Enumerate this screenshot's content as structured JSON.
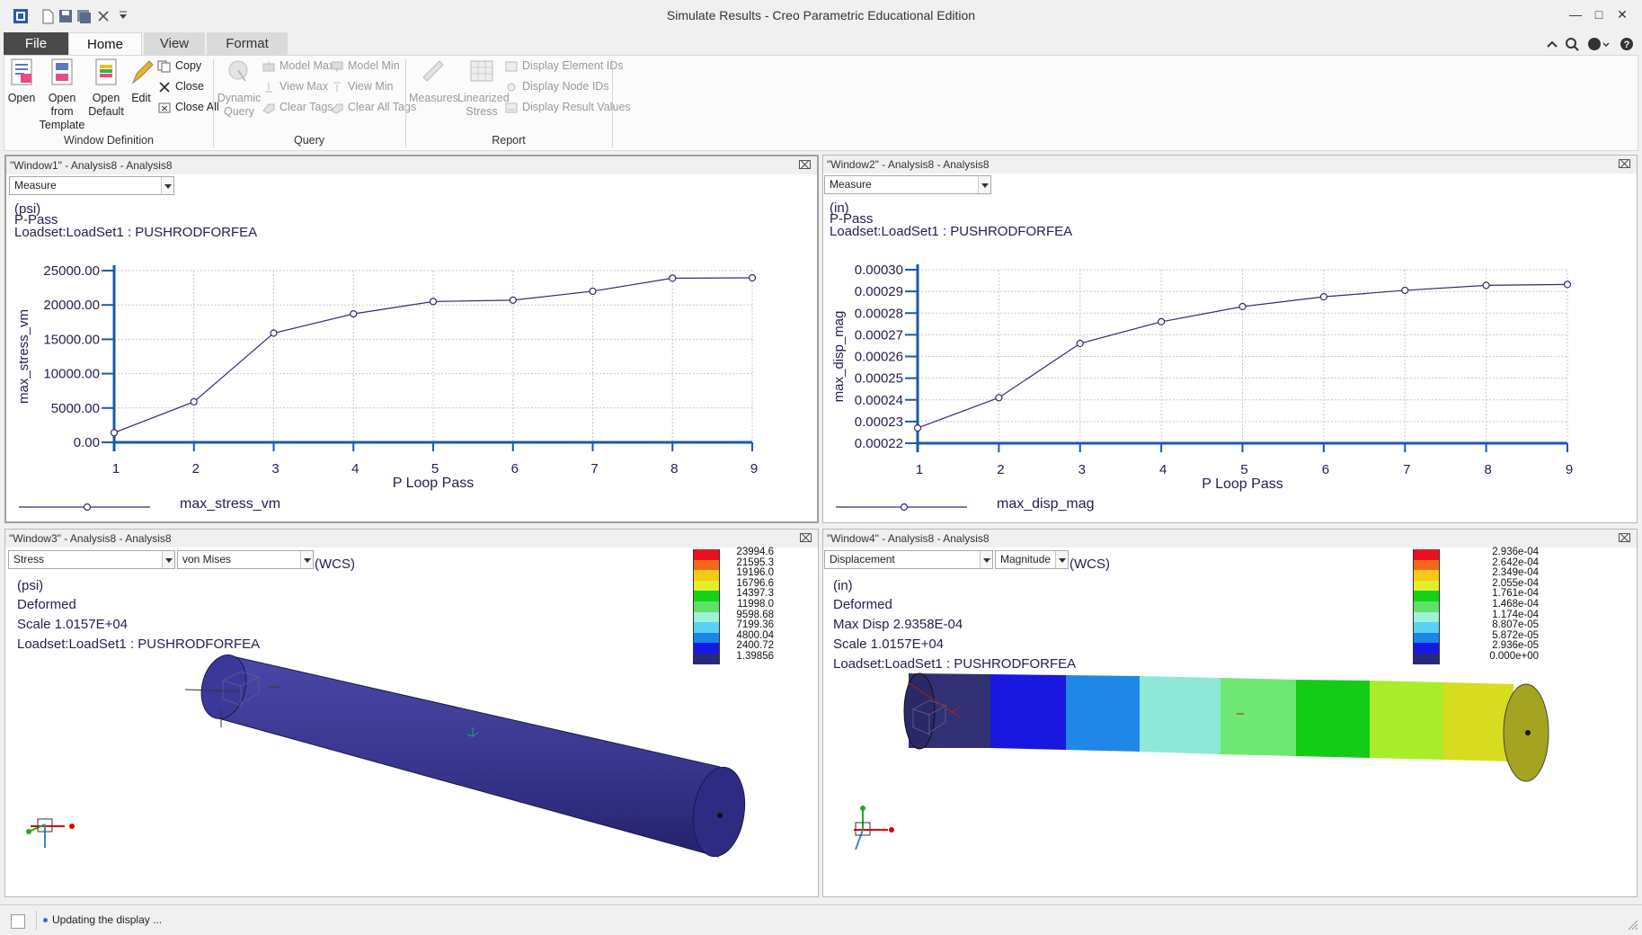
{
  "app": {
    "title": "Simulate Results - Creo Parametric Educational Edition"
  },
  "tabs": [
    "File",
    "Home",
    "View",
    "Format"
  ],
  "ribbon": {
    "window_definition": {
      "open": "Open",
      "open_from_template_1": "Open from",
      "open_from_template_2": "Template",
      "open_default_1": "Open",
      "open_default_2": "Default",
      "edit": "Edit",
      "copy": "Copy",
      "close": "Close",
      "close_all": "Close All",
      "group": "Window Definition"
    },
    "query": {
      "dynamic_1": "Dynamic",
      "dynamic_2": "Query",
      "model_max": "Model Max",
      "model_min": "Model Min",
      "view_max": "View Max",
      "view_min": "View Min",
      "clear_tags": "Clear Tags",
      "clear_all_tags": "Clear All Tags",
      "group": "Query"
    },
    "report": {
      "measures": "Measures",
      "linearized_1": "Linearized",
      "linearized_2": "Stress",
      "display_element_ids": "Display Element IDs",
      "display_node_ids": "Display Node IDs",
      "display_result_values": "Display Result Values",
      "group": "Report"
    }
  },
  "window1": {
    "header": "\"Window1\" - Analysis8 - Analysis8",
    "combo": "Measure",
    "unit": "(psi)",
    "subtitle": "P-Pass",
    "loadset": "Loadset:LoadSet1 :  PUSHRODFORFEA",
    "chart_data": {
      "type": "line",
      "x": [
        1,
        2,
        3,
        4,
        5,
        6,
        7,
        8,
        9
      ],
      "series": [
        {
          "name": "max_stress_vm",
          "values": [
            1400,
            5900,
            15900,
            18700,
            20500,
            20700,
            22000,
            23900,
            23950
          ]
        }
      ],
      "xlabel": "P Loop Pass",
      "ylabel": "max_stress_vm",
      "ylim": [
        0,
        25000
      ],
      "yticks": [
        "0.00",
        "5000.00",
        "10000.00",
        "15000.00",
        "20000.00",
        "25000.00"
      ],
      "xticks": [
        "1",
        "2",
        "3",
        "4",
        "5",
        "6",
        "7",
        "8",
        "9"
      ],
      "grid": true
    }
  },
  "window2": {
    "header": "\"Window2\" - Analysis8 - Analysis8",
    "combo": "Measure",
    "unit": "(in)",
    "subtitle": "P-Pass",
    "loadset": "Loadset:LoadSet1 :  PUSHRODFORFEA",
    "chart_data": {
      "type": "line",
      "x": [
        1,
        2,
        3,
        4,
        5,
        6,
        7,
        8,
        9
      ],
      "series": [
        {
          "name": "max_disp_mag",
          "values": [
            0.000227,
            0.000241,
            0.000266,
            0.000276,
            0.000283,
            0.0002875,
            0.0002905,
            0.0002928,
            0.0002932
          ]
        }
      ],
      "xlabel": "P Loop Pass",
      "ylabel": "max_disp_mag",
      "ylim": [
        0.00022,
        0.0003
      ],
      "yticks": [
        "0.00022",
        "0.00023",
        "0.00024",
        "0.00025",
        "0.00026",
        "0.00027",
        "0.00028",
        "0.00029",
        "0.00030"
      ],
      "xticks": [
        "1",
        "2",
        "3",
        "4",
        "5",
        "6",
        "7",
        "8",
        "9"
      ],
      "grid": true
    }
  },
  "window3": {
    "header": "\"Window3\" - Analysis8 - Analysis8",
    "combo1": "Stress",
    "combo2": "von Mises",
    "wcs": "(WCS)",
    "unit": "(psi)",
    "line2": "Deformed",
    "scale": "Scale  1.0157E+04",
    "loadset": "Loadset:LoadSet1 :  PUSHRODFORFEA",
    "legend": [
      "23994.6",
      "21595.3",
      "19196.0",
      "16796.6",
      "14397.3",
      "11998.0",
      "9598.68",
      "7199.36",
      "4800.04",
      "2400.72",
      "1.39856"
    ],
    "legend_colors": [
      "#e8121e",
      "#f06a18",
      "#f6c81a",
      "#e2f02a",
      "#14d21a",
      "#5ee06a",
      "#9cf2d8",
      "#5ad0f6",
      "#1a86e6",
      "#1818e6",
      "#262a7a"
    ]
  },
  "window4": {
    "header": "\"Window4\" - Analysis8 - Analysis8",
    "combo1": "Displacement",
    "combo2": "Magnitude",
    "wcs": "(WCS)",
    "unit": "(in)",
    "line2": "Deformed",
    "maxdisp": "Max Disp  2.9358E-04",
    "scale": "Scale  1.0157E+04",
    "loadset": "Loadset:LoadSet1 :  PUSHRODFORFEA",
    "legend": [
      "2.936e-04",
      "2.642e-04",
      "2.349e-04",
      "2.055e-04",
      "1.761e-04",
      "1.468e-04",
      "1.174e-04",
      "8.807e-05",
      "5.872e-05",
      "2.936e-05",
      "0.000e+00"
    ],
    "legend_colors": [
      "#e8121e",
      "#f06a18",
      "#f6c81a",
      "#e2f02a",
      "#14d21a",
      "#5ee06a",
      "#9cf2d8",
      "#5ad0f6",
      "#1a86e6",
      "#1818e6",
      "#262a7a"
    ]
  },
  "status": {
    "text": "Updating the display ..."
  }
}
